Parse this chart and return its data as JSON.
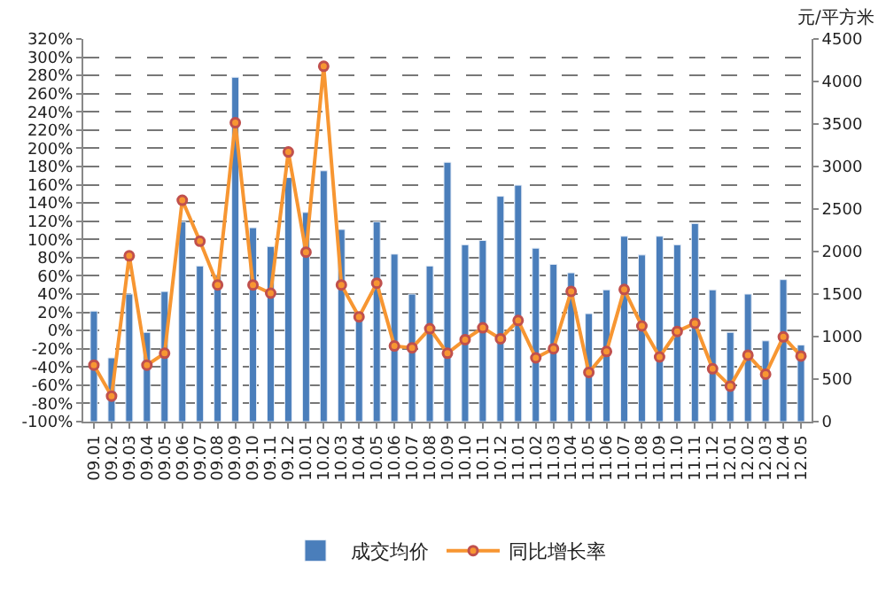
{
  "chart_data": {
    "type": "bar",
    "categories": [
      "09.01",
      "09.02",
      "09.03",
      "09.04",
      "09.05",
      "09.06",
      "09.07",
      "09.08",
      "09.09",
      "09.10",
      "09.11",
      "09.12",
      "10.01",
      "10.02",
      "10.03",
      "10.04",
      "10.05",
      "10.06",
      "10.07",
      "10.08",
      "10.09",
      "10.10",
      "10.11",
      "10.12",
      "11.01",
      "11.02",
      "11.03",
      "11.04",
      "11.05",
      "11.06",
      "11.07",
      "11.08",
      "11.09",
      "11.10",
      "11.11",
      "11.12",
      "12.01",
      "12.02",
      "12.03",
      "12.04",
      "12.05"
    ],
    "series": [
      {
        "name": "成交均价",
        "axis": "y2",
        "color": "#4a7ebb",
        "values": [
          1300,
          750,
          1500,
          1050,
          1530,
          2350,
          1830,
          1720,
          4050,
          2280,
          2060,
          2870,
          2460,
          2950,
          2260,
          1220,
          2350,
          1970,
          1500,
          1830,
          3050,
          2080,
          2130,
          2650,
          2780,
          2040,
          1850,
          1750,
          1270,
          1550,
          2180,
          1960,
          2180,
          2080,
          2330,
          1550,
          1050,
          1500,
          950,
          1670,
          900
        ]
      },
      {
        "name": "同比增长率",
        "type": "line",
        "color": "#f79632",
        "marker": "circle",
        "values": [
          -38,
          -72,
          82,
          -38,
          -25,
          143,
          98,
          50,
          228,
          50,
          41,
          196,
          86,
          290,
          50,
          15,
          52,
          -17,
          -19,
          2,
          -25,
          -10,
          3,
          -9,
          11,
          -30,
          -20,
          43,
          -46,
          -23,
          45,
          5,
          -29,
          -1,
          8,
          -42,
          -61,
          -27,
          -48,
          -7,
          -28
        ]
      }
    ],
    "y2label": "元/平方米",
    "ylim": [
      -100,
      320
    ],
    "yticks": [
      {
        "value": -100,
        "label": "-100%"
      },
      {
        "value": -80,
        "label": "-80%"
      },
      {
        "value": -60,
        "label": "-60%"
      },
      {
        "value": -40,
        "label": "-40%"
      },
      {
        "value": -20,
        "label": "-20%"
      },
      {
        "value": 0,
        "label": "0%"
      },
      {
        "value": 20,
        "label": "20%"
      },
      {
        "value": 40,
        "label": "40%"
      },
      {
        "value": 60,
        "label": "60%"
      },
      {
        "value": 80,
        "label": "80%"
      },
      {
        "value": 100,
        "label": "100%"
      },
      {
        "value": 120,
        "label": "120%"
      },
      {
        "value": 140,
        "label": "140%"
      },
      {
        "value": 160,
        "label": "160%"
      },
      {
        "value": 180,
        "label": "180%"
      },
      {
        "value": 200,
        "label": "200%"
      },
      {
        "value": 220,
        "label": "220%"
      },
      {
        "value": 240,
        "label": "240%"
      },
      {
        "value": 260,
        "label": "260%"
      },
      {
        "value": 280,
        "label": "280%"
      },
      {
        "value": 300,
        "label": "300%"
      },
      {
        "value": 320,
        "label": "320%"
      }
    ],
    "y2lim": [
      0,
      4500
    ],
    "y2ticks": [
      0,
      500,
      1000,
      1500,
      2000,
      2500,
      3000,
      3500,
      4000,
      4500
    ],
    "grid": "y",
    "legend": "bottom"
  }
}
